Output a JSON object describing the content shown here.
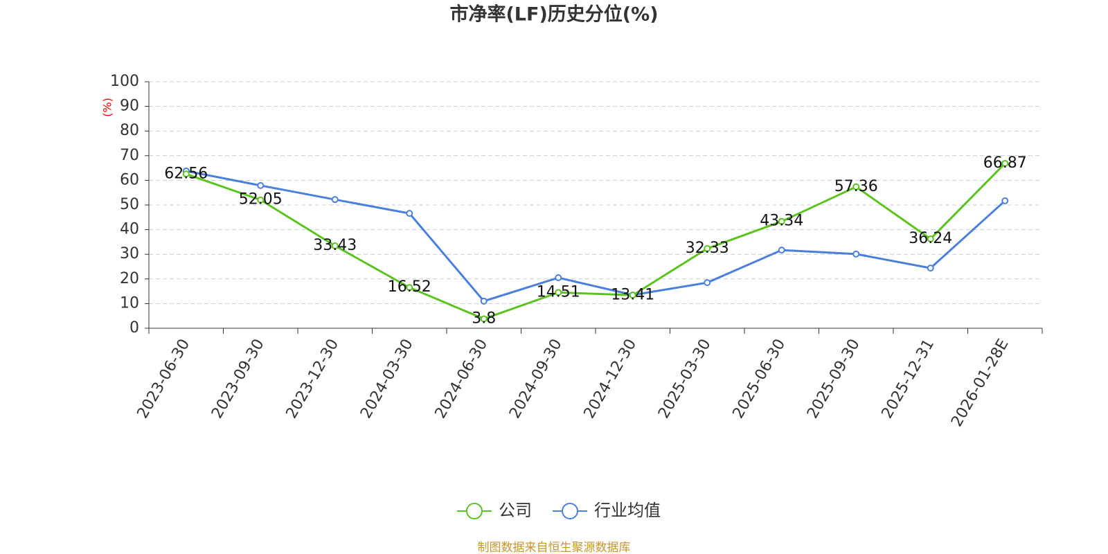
{
  "chart_data": {
    "type": "line",
    "title": "市净率(LF)历史分位(%)",
    "y_label": "(%)",
    "categories": [
      "2023-06-30",
      "2023-09-30",
      "2023-12-30",
      "2024-03-30",
      "2024-06-30",
      "2024-09-30",
      "2024-12-30",
      "2025-03-30",
      "2025-06-30",
      "2025-09-30",
      "2025-12-31",
      "2026-01-28E"
    ],
    "series": [
      {
        "name": "公司",
        "color": "#5cc21f",
        "values": [
          62.56,
          52.05,
          33.43,
          16.52,
          3.8,
          14.51,
          13.41,
          32.33,
          43.34,
          57.36,
          36.24,
          66.87
        ],
        "show_labels": true
      },
      {
        "name": "行业均值",
        "color": "#4a7fdc",
        "values": [
          63.8,
          57.9,
          52.2,
          46.6,
          11.0,
          20.5,
          13.5,
          18.5,
          31.7,
          30.1,
          24.4,
          51.7
        ],
        "show_labels": false
      }
    ],
    "ylim": [
      0,
      100
    ],
    "yticks": [
      0,
      10,
      20,
      30,
      40,
      50,
      60,
      70,
      80,
      90,
      100
    ],
    "grid": true,
    "legend": "bottom",
    "source": "制图数据来自恒生聚源数据库"
  }
}
